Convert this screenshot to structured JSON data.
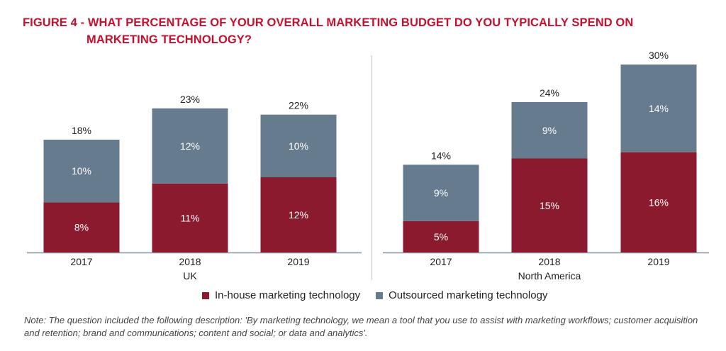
{
  "title_line1": "FIGURE 4 - WHAT PERCENTAGE OF YOUR OVERALL MARKETING BUDGET DO YOU TYPICALLY SPEND ON",
  "title_line2": "MARKETING TECHNOLOGY?",
  "colors": {
    "title": "#c8102e",
    "inhouse": "#8b1a2f",
    "outsourced": "#667b8e"
  },
  "legend": {
    "inhouse": "In-house marketing technology",
    "outsourced": "Outsourced marketing technology"
  },
  "note": "Note: The question included the following description: 'By marketing technology, we mean a tool that you use to assist with marketing workflows; customer acquisition and retention; brand and communications; content and social; or data and analytics'.",
  "chart_data": {
    "type": "bar",
    "stacked": true,
    "ylim": [
      0,
      30
    ],
    "groups": [
      {
        "name": "UK",
        "categories": [
          "2017",
          "2018",
          "2019"
        ],
        "series": [
          {
            "name": "In-house marketing technology",
            "values": [
              8,
              11,
              12
            ],
            "labels": [
              "8%",
              "11%",
              "12%"
            ]
          },
          {
            "name": "Outsourced marketing technology",
            "values": [
              10,
              12,
              10
            ],
            "labels": [
              "10%",
              "12%",
              "10%"
            ]
          }
        ],
        "totals": [
          18,
          23,
          22
        ],
        "total_labels": [
          "18%",
          "23%",
          "22%"
        ]
      },
      {
        "name": "North America",
        "categories": [
          "2017",
          "2018",
          "2019"
        ],
        "series": [
          {
            "name": "In-house marketing technology",
            "values": [
              5,
              15,
              16
            ],
            "labels": [
              "5%",
              "15%",
              "16%"
            ]
          },
          {
            "name": "Outsourced marketing technology",
            "values": [
              9,
              9,
              14
            ],
            "labels": [
              "9%",
              "9%",
              "14%"
            ]
          }
        ],
        "totals": [
          14,
          24,
          30
        ],
        "total_labels": [
          "14%",
          "24%",
          "30%"
        ]
      }
    ],
    "legend_position": "bottom",
    "grid": false
  }
}
